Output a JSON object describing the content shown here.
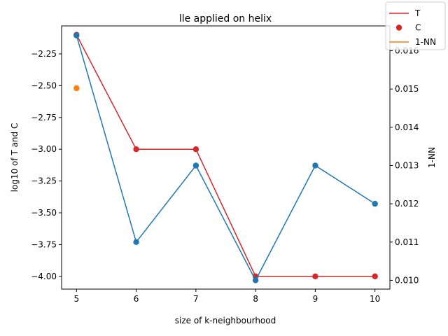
{
  "chart_data": {
    "type": "line",
    "title": "lle applied on helix",
    "xlabel": "size of k-neighbourhood",
    "ylabel_left": "log10 of T and C",
    "ylabel_right": "1-NN",
    "x": [
      5,
      6,
      7,
      8,
      9,
      10
    ],
    "xlim": [
      4.75,
      10.25
    ],
    "ylim_left": [
      -4.1,
      -2.03
    ],
    "ylim_right": [
      0.00977,
      0.01665
    ],
    "xticks": [
      "5",
      "6",
      "7",
      "8",
      "9",
      "10"
    ],
    "yticks_left": [
      "−4.00",
      "−3.75",
      "−3.50",
      "−3.25",
      "−3.00",
      "−2.75",
      "−2.50",
      "−2.25"
    ],
    "yticks_left_values": [
      -4.0,
      -3.75,
      -3.5,
      -3.25,
      -3.0,
      -2.75,
      -2.5,
      -2.25
    ],
    "yticks_right": [
      "0.010",
      "0.011",
      "0.012",
      "0.013",
      "0.014",
      "0.015",
      "0.016"
    ],
    "yticks_right_values": [
      0.01,
      0.011,
      0.012,
      0.013,
      0.014,
      0.015,
      0.016
    ],
    "series": [
      {
        "name": "T",
        "axis": "left",
        "style": "line",
        "color": "#d62728",
        "values": [
          -2.1,
          -3.0,
          -3.0,
          -4.0,
          -4.0,
          -4.0
        ]
      },
      {
        "name": "C",
        "axis": "left",
        "style": "scatter",
        "color": "#d62728",
        "values": [
          -2.1,
          -3.0,
          -3.0,
          -4.0,
          -4.0,
          -4.0
        ]
      },
      {
        "name": "1-NN",
        "axis": "left",
        "style": "scatter",
        "color": "#ff7f0e",
        "x": [
          5
        ],
        "values": [
          -2.52
        ]
      },
      {
        "axis": "right",
        "style": "line-marker",
        "color": "#1f77b4",
        "values": [
          0.0164,
          0.011,
          0.013,
          0.01,
          0.013,
          0.012
        ]
      }
    ],
    "legend": {
      "placement": "top-right",
      "entries": [
        {
          "name": "T",
          "marker": "line",
          "color": "#d62728"
        },
        {
          "name": "C",
          "marker": "dot",
          "color": "#d62728"
        },
        {
          "name": "1-NN",
          "marker": "line",
          "color": "#ff7f0e"
        }
      ]
    }
  }
}
